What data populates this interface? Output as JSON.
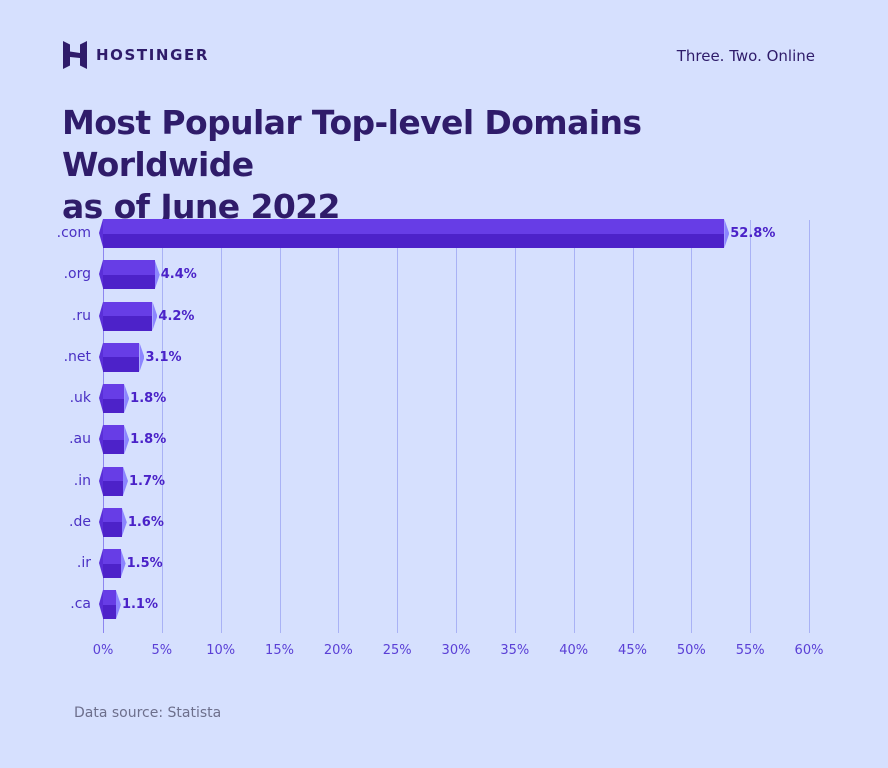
{
  "brand": {
    "name": "HOSTINGER",
    "tagline": "Three. Two. Online"
  },
  "title": {
    "line1": "Most Popular Top-level Domains Worldwide",
    "line2": "as of June 2022"
  },
  "source": "Data source: Statista",
  "colors": {
    "background": "#d6e0fe",
    "bar_top": "#673de6",
    "bar_bottom": "#4d22c9",
    "bar_cap": "#8c85ff",
    "title": "#2f1c6a",
    "axis_text": "#5a3fd6",
    "gridline": "#a9b2f5"
  },
  "chart_data": {
    "type": "bar",
    "orientation": "horizontal",
    "title": "Most Popular Top-level Domains Worldwide as of June 2022",
    "categories": [
      ".com",
      ".org",
      ".ru",
      ".net",
      ".uk",
      ".au",
      ".in",
      ".de",
      ".ir",
      ".ca"
    ],
    "values": [
      52.8,
      4.4,
      4.2,
      3.1,
      1.8,
      1.8,
      1.7,
      1.6,
      1.5,
      1.1
    ],
    "value_labels": [
      "52.8%",
      "4.4%",
      "4.2%",
      "3.1%",
      "1.8%",
      "1.8%",
      "1.7%",
      "1.6%",
      "1.5%",
      "1.1%"
    ],
    "xlabel": "",
    "ylabel": "",
    "xlim": [
      0,
      60
    ],
    "xticks": [
      "0%",
      "5%",
      "10%",
      "15%",
      "20%",
      "25%",
      "30%",
      "35%",
      "40%",
      "45%",
      "50%",
      "55%",
      "60%"
    ],
    "grid": "vertical",
    "legend": "none",
    "source": "Statista"
  }
}
